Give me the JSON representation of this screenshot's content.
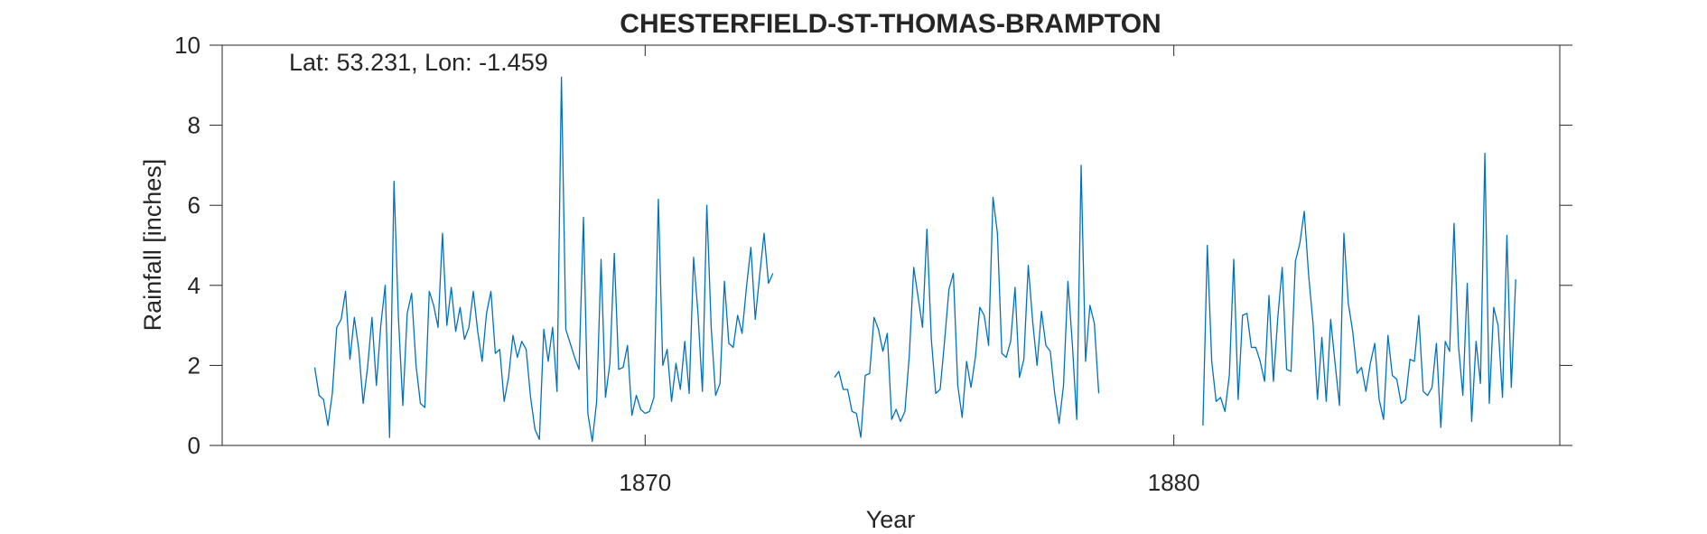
{
  "chart_data": {
    "type": "line",
    "title": "CHESTERFIELD-ST-THOMAS-BRAMPTON",
    "annotation": "Lat: 53.231, Lon: -1.459",
    "xlabel": "Year",
    "ylabel": "Rainfall [inches]",
    "xlim": [
      1862.0,
      1887.3
    ],
    "ylim": [
      0,
      10
    ],
    "xticks": [
      1870,
      1880
    ],
    "xtick_labels": [
      "1870",
      "1880"
    ],
    "yticks": [
      0,
      2,
      4,
      6,
      8,
      10
    ],
    "ytick_labels": [
      "0",
      "2",
      "4",
      "6",
      "8",
      "10"
    ],
    "grid": false,
    "box": true,
    "line_color": "#0072BD",
    "series": [
      {
        "segments": [
          {
            "start_year": 1863.75,
            "step_years": 0.08333,
            "values": [
              1.95,
              1.25,
              1.15,
              0.5,
              1.3,
              2.95,
              3.15,
              3.85,
              2.15,
              3.2,
              2.4,
              1.05,
              1.95,
              3.2,
              1.5,
              3.0,
              4.0,
              0.2,
              6.6,
              3.2,
              1.0,
              3.3,
              3.8,
              2.0,
              1.05,
              0.95,
              3.85,
              3.5,
              2.95,
              5.3,
              3.0,
              3.95,
              2.85,
              3.45,
              2.65,
              2.95,
              3.85,
              2.85,
              2.1,
              3.3,
              3.85,
              2.3,
              2.4,
              1.1,
              1.7,
              2.75,
              2.2,
              2.6,
              2.4,
              1.2,
              0.4,
              0.15,
              2.9,
              2.1,
              2.95,
              1.35,
              9.2,
              2.9,
              2.55,
              2.2,
              1.9,
              5.7,
              0.8,
              0.1,
              1.1,
              4.65,
              1.2,
              2.05,
              4.8,
              1.9,
              1.95,
              2.5,
              0.75,
              1.25,
              0.9,
              0.8,
              0.85,
              1.2,
              6.15,
              2.0,
              2.4,
              1.1,
              2.05,
              1.4,
              2.6,
              1.3,
              4.7,
              3.3,
              1.35,
              6.0,
              2.95,
              1.25,
              1.55,
              4.1,
              2.55,
              2.45,
              3.25,
              2.8,
              3.95,
              4.95,
              3.15,
              4.25,
              5.3,
              4.05,
              4.3
            ]
          },
          {
            "start_year": 1873.58,
            "step_years": 0.08333,
            "values": [
              1.7,
              1.85,
              1.4,
              1.4,
              0.85,
              0.8,
              0.2,
              1.75,
              1.8,
              3.2,
              2.9,
              2.35,
              2.8,
              0.65,
              0.9,
              0.6,
              0.85,
              2.25,
              4.45,
              3.7,
              2.95,
              5.4,
              2.65,
              1.3,
              1.4,
              2.6,
              3.9,
              4.3,
              1.5,
              0.7,
              2.1,
              1.45,
              2.2,
              3.45,
              3.25,
              2.5,
              6.2,
              5.3,
              2.3,
              2.2,
              2.6,
              3.95,
              1.7,
              2.15,
              4.5,
              3.1,
              2.0,
              3.35,
              2.5,
              2.35,
              1.3,
              0.55,
              1.5,
              4.1,
              2.55,
              0.65,
              7.0,
              2.1,
              3.5,
              3.05,
              1.3
            ]
          },
          {
            "start_year": 1880.55,
            "step_years": 0.08333,
            "values": [
              0.5,
              5.0,
              2.1,
              1.1,
              1.2,
              0.85,
              1.75,
              4.65,
              1.15,
              3.25,
              3.3,
              2.45,
              2.45,
              2.1,
              1.6,
              3.75,
              1.6,
              3.2,
              4.45,
              1.9,
              1.85,
              4.6,
              5.05,
              5.85,
              4.25,
              3.05,
              1.15,
              2.7,
              1.1,
              3.15,
              2.05,
              1.0,
              5.3,
              3.55,
              2.85,
              1.8,
              1.95,
              1.35,
              2.05,
              2.55,
              1.15,
              0.65,
              2.75,
              1.75,
              1.65,
              1.05,
              1.15,
              2.15,
              2.1,
              3.25,
              1.35,
              1.25,
              1.45,
              2.55,
              0.45,
              2.6,
              2.35,
              5.55,
              2.5,
              1.25,
              4.05,
              0.6,
              2.6,
              1.55,
              7.3,
              1.05,
              3.45,
              3.0,
              1.2,
              5.25,
              1.45,
              4.15
            ]
          }
        ]
      }
    ]
  }
}
